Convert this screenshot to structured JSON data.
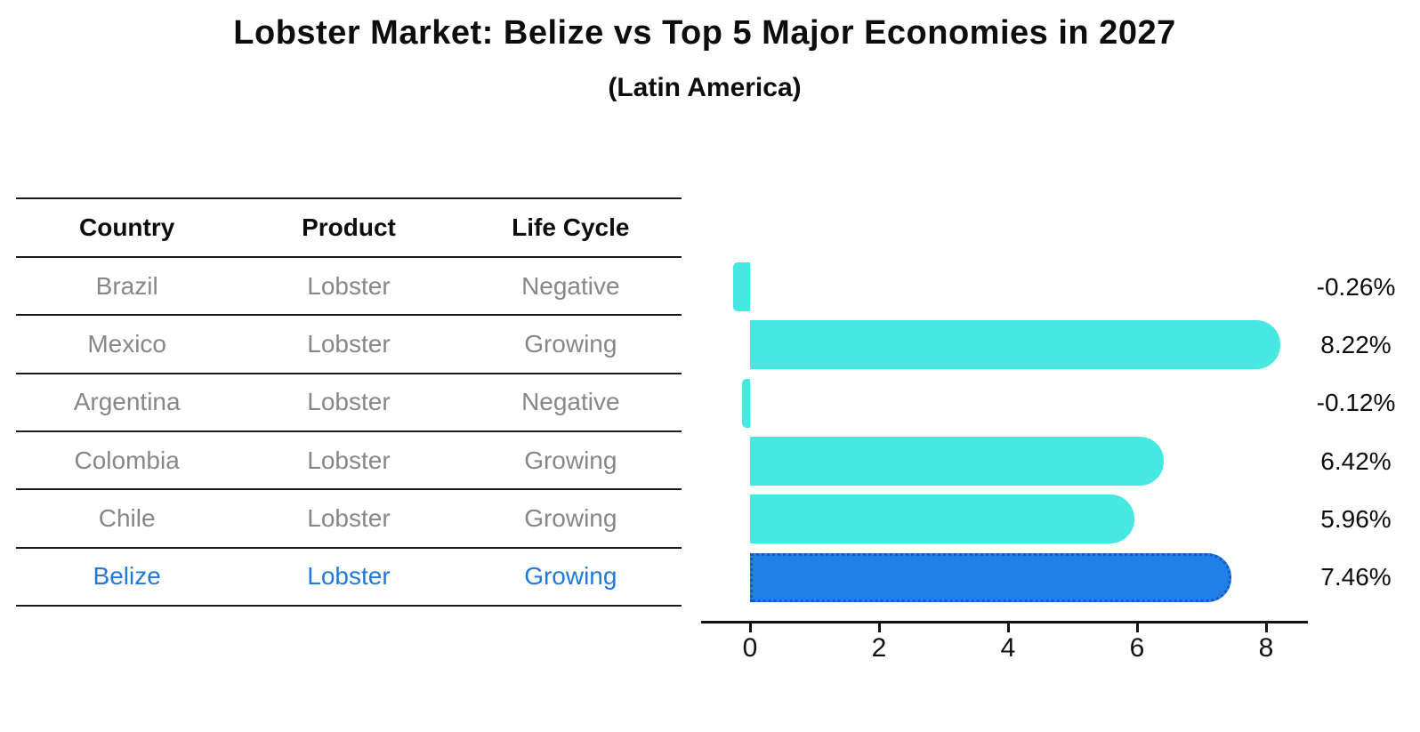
{
  "title": "Lobster Market: Belize vs Top 5 Major Economies in 2027",
  "subtitle": "(Latin America)",
  "table": {
    "headers": [
      "Country",
      "Product",
      "Life Cycle"
    ],
    "rows": [
      {
        "country": "Brazil",
        "product": "Lobster",
        "life_cycle": "Negative"
      },
      {
        "country": "Mexico",
        "product": "Lobster",
        "life_cycle": "Growing"
      },
      {
        "country": "Argentina",
        "product": "Lobster",
        "life_cycle": "Negative"
      },
      {
        "country": "Colombia",
        "product": "Lobster",
        "life_cycle": "Growing"
      },
      {
        "country": "Chile",
        "product": "Lobster",
        "life_cycle": "Growing"
      },
      {
        "country": "Belize",
        "product": "Lobster",
        "life_cycle": "Growing"
      }
    ]
  },
  "chart_data": {
    "type": "bar",
    "orientation": "horizontal",
    "categories": [
      "Brazil",
      "Mexico",
      "Argentina",
      "Colombia",
      "Chile",
      "Belize"
    ],
    "values": [
      -0.26,
      8.22,
      -0.12,
      6.42,
      5.96,
      7.46
    ],
    "labels": [
      "-0.26%",
      "8.22%",
      "-0.12%",
      "6.42%",
      "5.96%",
      "7.46%"
    ],
    "xticks": [
      0,
      2,
      4,
      6,
      8
    ],
    "xtick_labels": [
      "0",
      "2",
      "4",
      "6",
      "8"
    ],
    "xlim": [
      -0.76,
      8.65
    ],
    "grid": false,
    "legend": "none",
    "highlight_index": 5
  },
  "colors": {
    "bar": "#47E8E1",
    "highlight_bar": "#2080E8",
    "highlight_border": "#1057C8",
    "highlight_text": "#2279DB",
    "row_text": "#878787",
    "header_text": "#0d0d0d"
  }
}
